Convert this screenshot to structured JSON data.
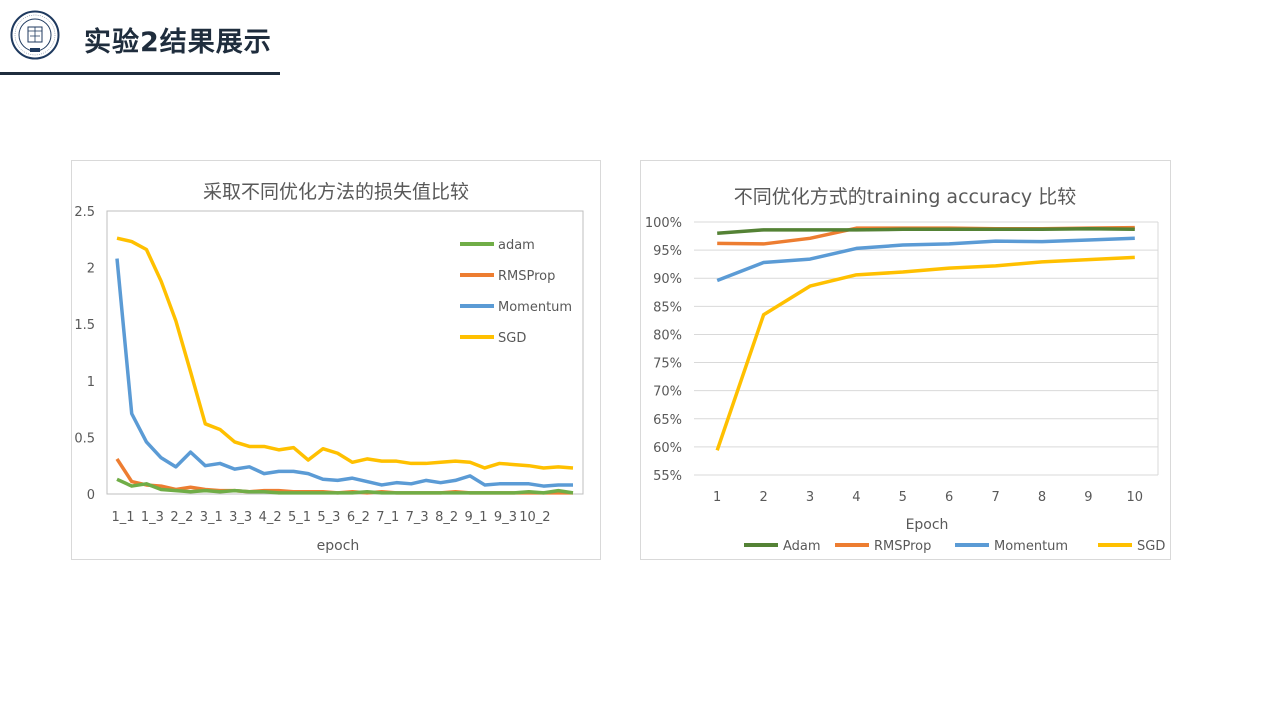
{
  "slide": {
    "title": "实验2结果展示"
  },
  "colors": {
    "adam": "#70ad47",
    "Adam": "#548235",
    "rmsprop": "#ed7d31",
    "momentum": "#5b9bd5",
    "sgd": "#ffc000"
  },
  "chart_data": [
    {
      "type": "line",
      "title": "采取不同优化方法的损失值比较",
      "xlabel": "epoch",
      "ylabel": "",
      "ylim": [
        0,
        2.5
      ],
      "yticks": [
        "2.5",
        "2",
        "1.5",
        "1",
        "0.5",
        "0"
      ],
      "xtick_labels": [
        "1_1",
        "1_3",
        "2_2",
        "3_1",
        "3_3",
        "4_2",
        "5_1",
        "5_3",
        "6_2",
        "7_1",
        "7_3",
        "8_2",
        "9_1",
        "9_3",
        "10_2"
      ],
      "grid": false,
      "legend": "inside-right",
      "series": [
        {
          "name": "adam",
          "color": "#70ad47",
          "values": [
            0.13,
            0.07,
            0.09,
            0.04,
            0.03,
            0.02,
            0.03,
            0.02,
            0.03,
            0.02,
            0.02,
            0.01,
            0.01,
            0.01,
            0.01,
            0.01,
            0.01,
            0.02,
            0.01,
            0.01,
            0.01,
            0.01,
            0.01,
            0.01,
            0.01,
            0.01,
            0.01,
            0.01,
            0.02,
            0.01,
            0.03,
            0.01
          ]
        },
        {
          "name": "RMSProp",
          "color": "#ed7d31",
          "values": [
            0.31,
            0.11,
            0.08,
            0.07,
            0.04,
            0.06,
            0.04,
            0.03,
            0.03,
            0.02,
            0.03,
            0.03,
            0.02,
            0.02,
            0.02,
            0.01,
            0.02,
            0.01,
            0.02,
            0.01,
            0.01,
            0.01,
            0.01,
            0.02,
            0.01,
            0.01,
            0.01,
            0.01,
            0.01,
            0.01,
            0.01,
            0.01
          ]
        },
        {
          "name": "Momentum",
          "color": "#5b9bd5",
          "values": [
            2.08,
            0.71,
            0.46,
            0.32,
            0.24,
            0.37,
            0.25,
            0.27,
            0.22,
            0.24,
            0.18,
            0.2,
            0.2,
            0.18,
            0.13,
            0.12,
            0.14,
            0.11,
            0.08,
            0.1,
            0.09,
            0.12,
            0.1,
            0.12,
            0.16,
            0.08,
            0.09,
            0.09,
            0.09,
            0.07,
            0.08,
            0.08
          ]
        },
        {
          "name": "SGD",
          "color": "#ffc000",
          "values": [
            2.26,
            2.23,
            2.16,
            1.88,
            1.53,
            1.08,
            0.62,
            0.57,
            0.46,
            0.42,
            0.42,
            0.39,
            0.41,
            0.3,
            0.4,
            0.36,
            0.28,
            0.31,
            0.29,
            0.29,
            0.27,
            0.27,
            0.28,
            0.29,
            0.28,
            0.23,
            0.27,
            0.26,
            0.25,
            0.23,
            0.24,
            0.23
          ]
        }
      ]
    },
    {
      "type": "line",
      "title": "不同优化方式的training accuracy 比较",
      "xlabel": "Epoch",
      "ylabel": "",
      "ylim": [
        0.55,
        1.0
      ],
      "yticks": [
        "100%",
        "95%",
        "90%",
        "85%",
        "80%",
        "75%",
        "70%",
        "65%",
        "60%",
        "55%"
      ],
      "categories": [
        "1",
        "2",
        "3",
        "4",
        "5",
        "6",
        "7",
        "8",
        "9",
        "10"
      ],
      "grid": true,
      "legend": "bottom",
      "series": [
        {
          "name": "Adam",
          "color": "#548235",
          "values": [
            0.98,
            0.986,
            0.986,
            0.986,
            0.987,
            0.987,
            0.987,
            0.987,
            0.988,
            0.987
          ]
        },
        {
          "name": "RMSProp",
          "color": "#ed7d31",
          "values": [
            0.962,
            0.961,
            0.971,
            0.989,
            0.989,
            0.989,
            0.988,
            0.988,
            0.989,
            0.99
          ]
        },
        {
          "name": "Momentum",
          "color": "#5b9bd5",
          "values": [
            0.896,
            0.928,
            0.934,
            0.953,
            0.959,
            0.961,
            0.966,
            0.965,
            0.968,
            0.971
          ]
        },
        {
          "name": "SGD",
          "color": "#ffc000",
          "values": [
            0.594,
            0.835,
            0.886,
            0.906,
            0.911,
            0.918,
            0.922,
            0.929,
            0.933,
            0.937
          ]
        }
      ]
    }
  ]
}
